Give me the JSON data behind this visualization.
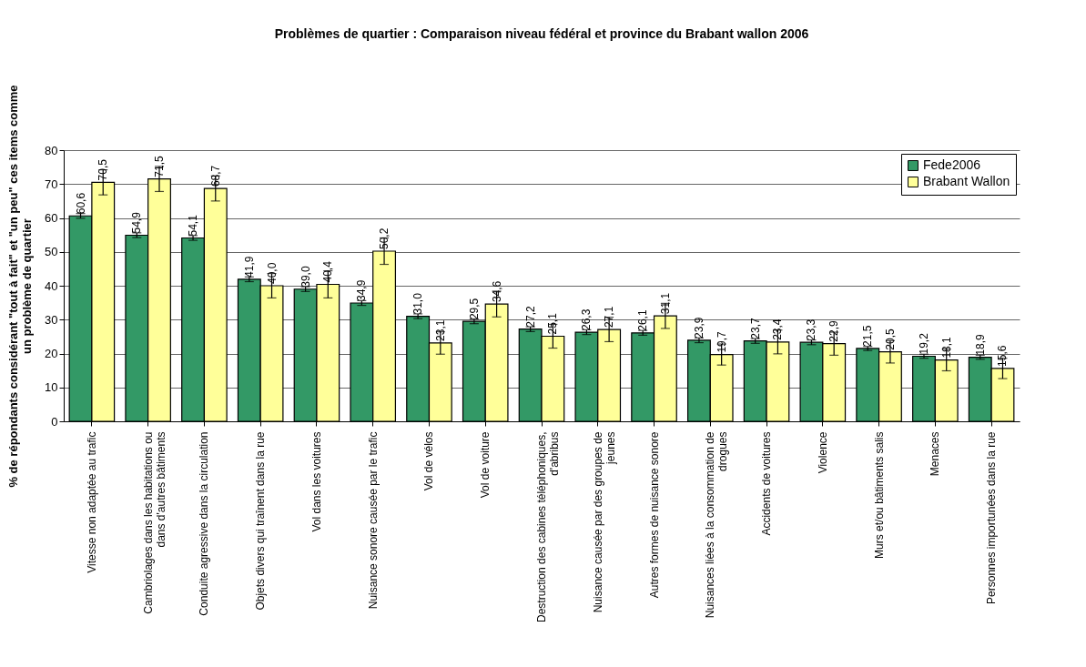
{
  "chart_data": {
    "type": "bar",
    "title": "Problèmes de quartier : Comparaison niveau fédéral et province du Brabant wallon 2006",
    "ylabel": "% de répondants considérant \"tout à fait\" et \"un peu\" ces items comme un problème de quartier",
    "categories": [
      "Vitesse non adaptée au trafic",
      "Cambriolages dans les habitations ou dans d'autres bâtiments",
      "Conduite agressive dans la circulation",
      "Objets divers qui traînent dans la rue",
      "Vol dans les voitures",
      "Nuisance sonore causée par le trafic",
      "Vol de vélos",
      "Vol de voiture",
      "Destruction des cabines téléphoniques, d'abribus",
      "Nuisance causée par des groupes de jeunes",
      "Autres formes de nuisance sonore",
      "Nuisances liées à la consommation de drogues",
      "Accidents de voitures",
      "Violence",
      "Murs et/ou bâtiments salis",
      "Menaces",
      "Personnes importunées dans la rue"
    ],
    "series": [
      {
        "name": "Fede2006",
        "color": "#339966",
        "values": [
          60.6,
          54.9,
          54.1,
          41.9,
          39.0,
          34.9,
          31.0,
          29.5,
          27.2,
          26.3,
          26.1,
          23.9,
          23.7,
          23.3,
          21.5,
          19.2,
          18.9
        ],
        "errors": [
          0.7,
          0.7,
          0.7,
          0.7,
          0.7,
          0.7,
          0.7,
          0.7,
          0.7,
          0.7,
          0.7,
          0.7,
          0.7,
          0.7,
          0.6,
          0.6,
          0.6
        ],
        "value_labels": [
          "60,6",
          "54,9",
          "54,1",
          "41,9",
          "39,0",
          "34,9",
          "31,0",
          "29,5",
          "27,2",
          "26,3",
          "26,1",
          "23,9",
          "23,7",
          "23,3",
          "21,5",
          "19,2",
          "18,9"
        ]
      },
      {
        "name": "Brabant Wallon",
        "color": "#ffff99",
        "values": [
          70.5,
          71.5,
          68.7,
          40.0,
          40.4,
          50.2,
          23.1,
          34.6,
          25.1,
          27.1,
          31.1,
          19.7,
          23.4,
          22.9,
          20.5,
          18.1,
          15.6
        ],
        "errors": [
          3.7,
          3.7,
          3.7,
          3.6,
          4.0,
          3.9,
          3.3,
          3.8,
          3.5,
          3.6,
          3.7,
          3.1,
          3.5,
          3.4,
          3.3,
          3.2,
          3.0
        ],
        "value_labels": [
          "70,5",
          "71,5",
          "68,7",
          "40,0",
          "40,4",
          "50,2",
          "23,1",
          "34,6",
          "25,1",
          "27,1",
          "31,1",
          "19,7",
          "23,4",
          "22,9",
          "20,5",
          "18,1",
          "15,6"
        ]
      }
    ],
    "ylim": [
      0,
      80
    ],
    "yticks": [
      0,
      10,
      20,
      30,
      40,
      50,
      60,
      70,
      80
    ],
    "grid": "y",
    "legend": "top right"
  }
}
